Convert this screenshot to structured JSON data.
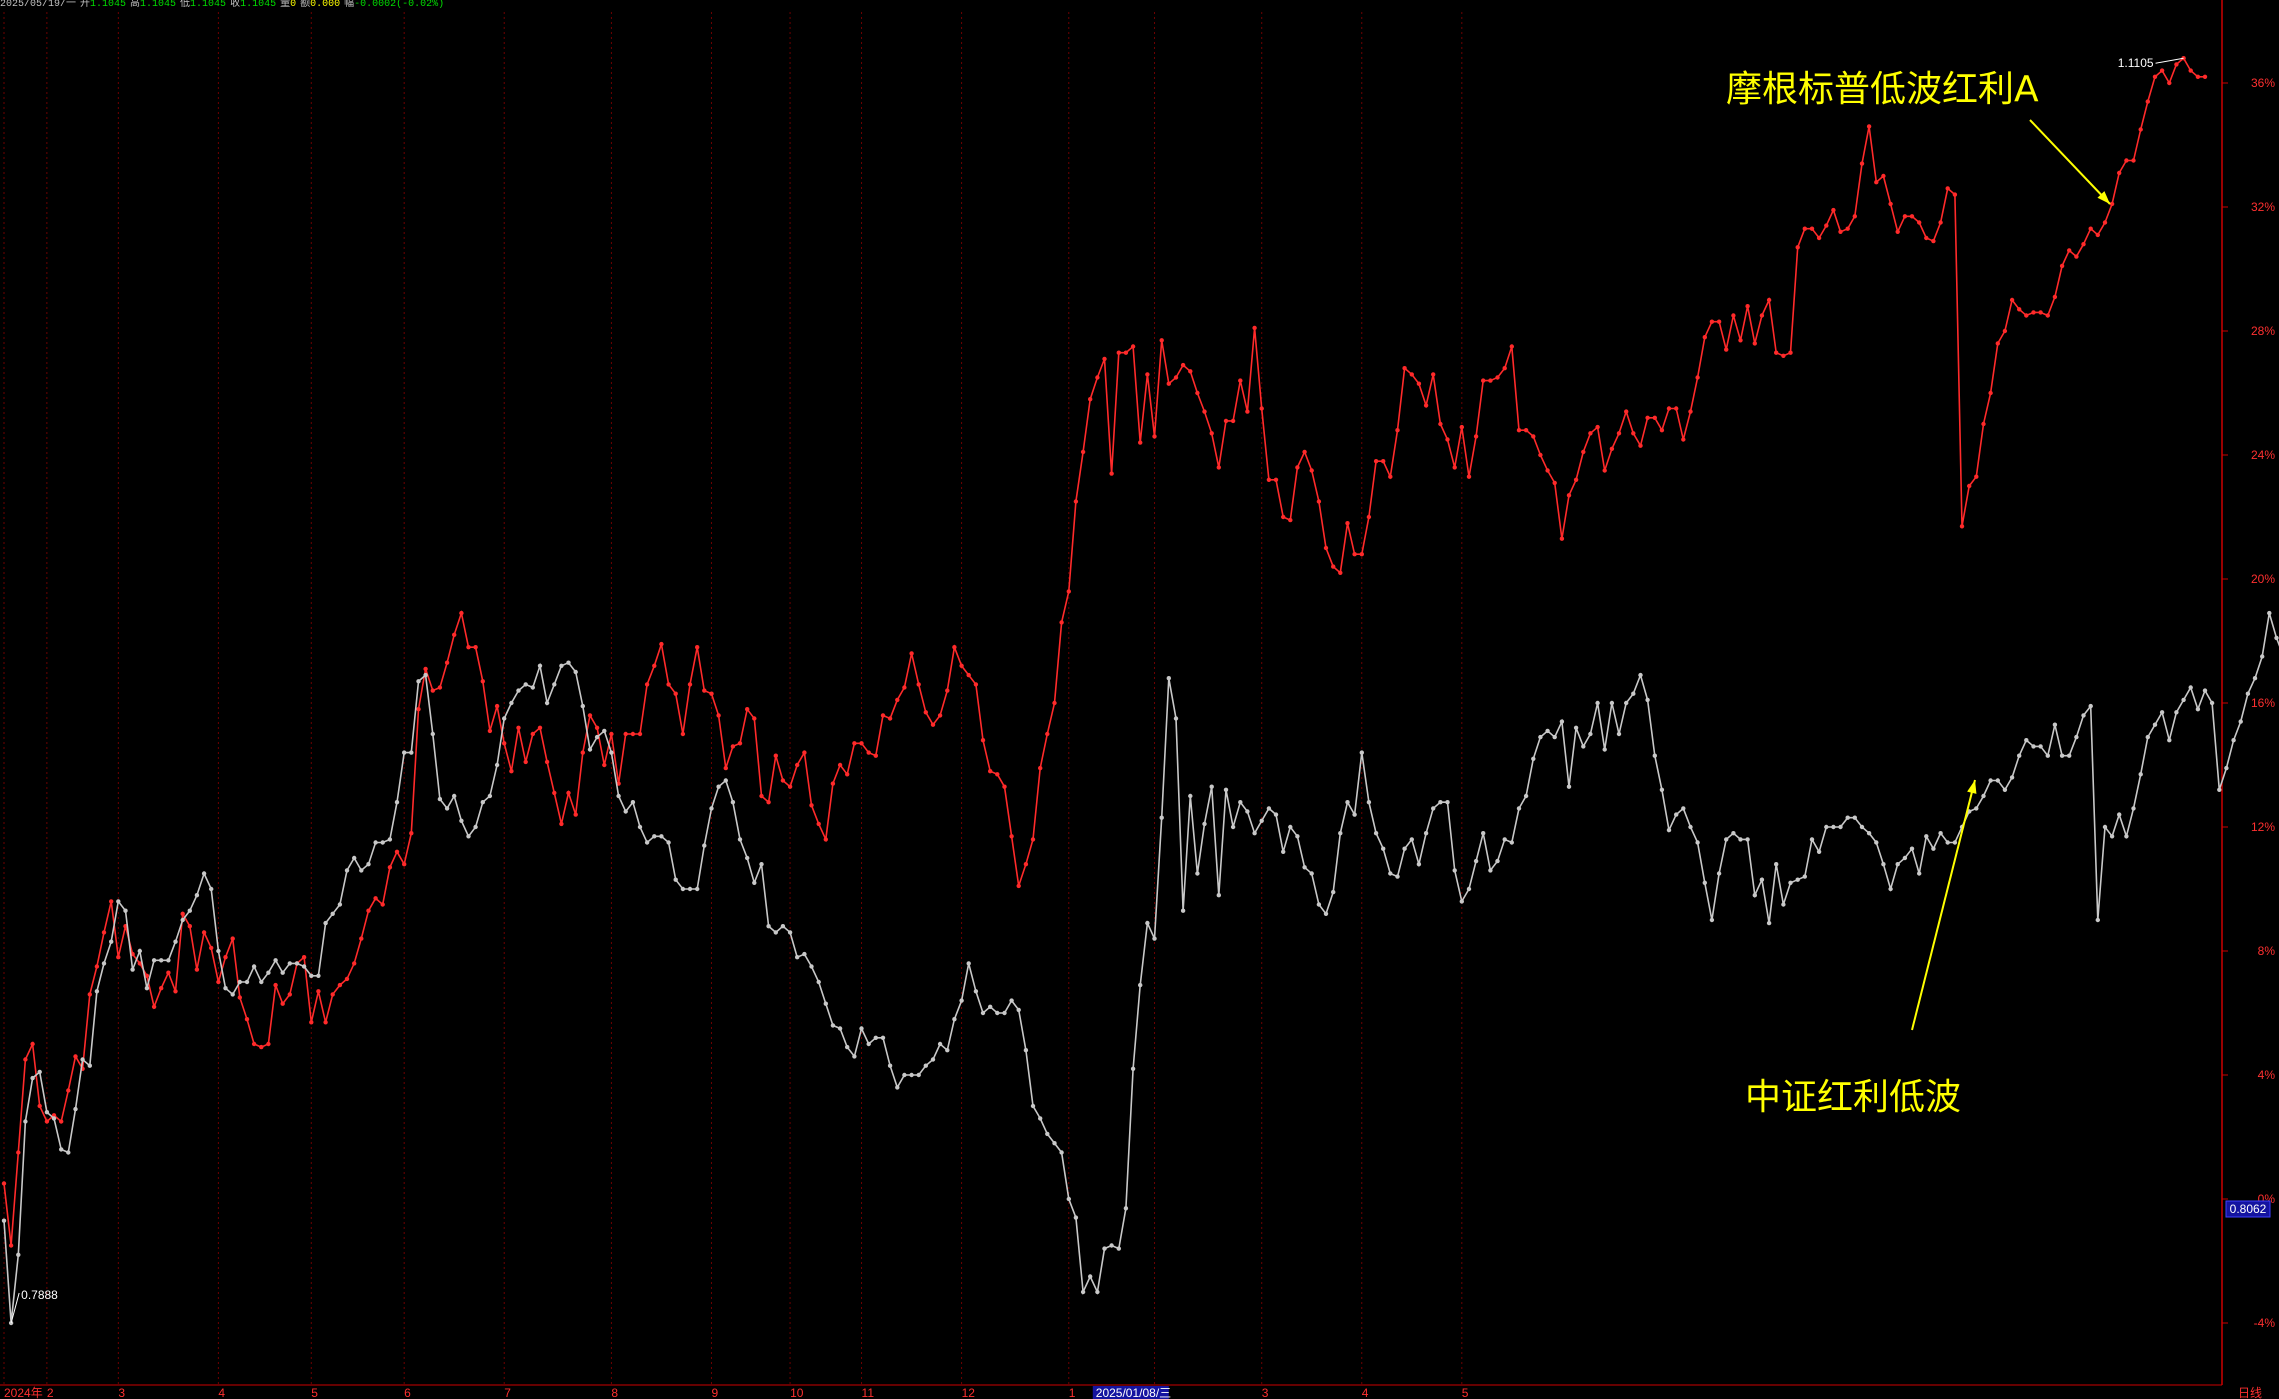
{
  "header": {
    "date": "2025/05/19/一",
    "open_label": "开",
    "open": "1.1045",
    "high_label": "高",
    "high": "1.1045",
    "low_label": "低",
    "low": "1.1045",
    "close_label": "收",
    "close": "1.1045",
    "vol_label": "量",
    "vol": "0",
    "amount_label": "额",
    "amount": "0.000",
    "change_label": "幅",
    "change": "-0.0002(-0.02%)"
  },
  "annotations": {
    "fund": "摩根标普低波红利A",
    "index": "中证红利低波"
  },
  "markers": {
    "high_label": "1.1105",
    "low_label": "0.7888",
    "current_box": "0.8062"
  },
  "bottom": {
    "cursor_date": "2025/01/08/三",
    "period": "日线"
  },
  "colors": {
    "fund": "#ff2a2a",
    "index": "#c8c8c8",
    "grid": "#6e0000",
    "axis": "#cc0000",
    "annotation": "#ffff00"
  },
  "chart_data": {
    "type": "line",
    "title": "",
    "ylabel": "",
    "xlabel": "",
    "y_unit": "%",
    "ylim": [
      -5,
      38
    ],
    "y_ticks": [
      "-4%",
      "0%",
      "4%",
      "8%",
      "12%",
      "16%",
      "20%",
      "24%",
      "28%",
      "32%",
      "36%"
    ],
    "x_ticks": [
      "2024年",
      "2",
      "3",
      "4",
      "5",
      "6",
      "7",
      "8",
      "9",
      "10",
      "11",
      "12",
      "1",
      "2",
      "3",
      "4",
      "5"
    ],
    "x_tick_index": [
      0,
      6,
      16,
      30,
      43,
      56,
      70,
      85,
      99,
      110,
      120,
      134,
      149,
      161,
      176,
      190,
      204
    ],
    "grid": true,
    "series": [
      {
        "name": "摩根标普低波红利A",
        "values": [
          0.5,
          -1.5,
          1.5,
          4.5,
          5.0,
          3.0,
          2.5,
          2.7,
          2.5,
          3.5,
          4.6,
          4.2,
          6.6,
          7.5,
          8.6,
          9.6,
          7.8,
          8.8,
          7.9,
          7.6,
          7.2,
          6.2,
          6.8,
          7.3,
          6.7,
          9.2,
          8.8,
          7.4,
          8.6,
          8.1,
          7.0,
          7.8,
          8.4,
          6.5,
          5.8,
          5.0,
          4.9,
          5.0,
          6.9,
          6.3,
          6.6,
          7.6,
          7.8,
          5.7,
          6.7,
          5.7,
          6.6,
          6.9,
          7.1,
          7.6,
          8.4,
          9.3,
          9.7,
          9.5,
          10.7,
          11.2,
          10.8,
          11.8,
          15.8,
          17.1,
          16.4,
          16.5,
          17.3,
          18.2,
          18.9,
          17.8,
          17.8,
          16.7,
          15.1,
          15.9,
          14.7,
          13.8,
          15.2,
          14.1,
          15.0,
          15.2,
          14.1,
          13.1,
          12.1,
          13.1,
          12.4,
          14.4,
          15.6,
          15.2,
          14.0,
          15.0,
          13.4,
          15.0,
          15.0,
          15.0,
          16.6,
          17.2,
          17.9,
          16.6,
          16.3,
          15.0,
          16.6,
          17.8,
          16.4,
          16.3,
          15.6,
          13.9,
          14.6,
          14.7,
          15.8,
          15.5,
          13.0,
          12.8,
          14.3,
          13.5,
          13.3,
          14.0,
          14.4,
          12.7,
          12.1,
          11.6,
          13.4,
          14.0,
          13.7,
          14.7,
          14.7,
          14.4,
          14.3,
          15.6,
          15.5,
          16.1,
          16.5,
          17.6,
          16.6,
          15.7,
          15.3,
          15.6,
          16.4,
          17.8,
          17.2,
          16.9,
          16.6,
          14.8,
          13.8,
          13.7,
          13.3,
          11.7,
          10.1,
          10.8,
          11.6,
          13.9,
          15.0,
          16.0,
          18.6,
          19.6,
          22.5,
          24.1,
          25.8,
          26.5,
          27.1,
          23.4,
          27.3,
          27.3,
          27.5,
          24.4,
          26.6,
          24.6,
          27.7,
          26.3,
          26.5,
          26.9,
          26.7,
          26.0,
          25.4,
          24.7,
          23.6,
          25.1,
          25.1,
          26.4,
          25.4,
          28.1,
          25.5,
          23.2,
          23.2,
          22.0,
          21.9,
          23.6,
          24.1,
          23.5,
          22.5,
          21.0,
          20.4,
          20.2,
          21.8,
          20.8,
          20.8,
          22.0,
          23.8,
          23.8,
          23.3,
          24.8,
          26.8,
          26.6,
          26.3,
          25.6,
          26.6,
          25.0,
          24.5,
          23.6,
          24.9,
          23.3,
          24.6,
          26.4,
          26.4,
          26.5,
          26.8,
          27.5,
          24.8,
          24.8,
          24.6,
          24.0,
          23.5,
          23.1,
          21.3,
          22.7,
          23.2,
          24.1,
          24.7,
          24.9,
          23.5,
          24.2,
          24.7,
          25.4,
          24.7,
          24.3,
          25.2,
          25.2,
          24.8,
          25.5,
          25.5,
          24.5,
          25.4,
          26.5,
          27.8,
          28.3,
          28.3,
          27.4,
          28.5,
          27.7,
          28.8,
          27.6,
          28.5,
          29.0,
          27.3,
          27.2,
          27.3,
          30.7,
          31.3,
          31.3,
          31.0,
          31.4,
          31.9,
          31.2,
          31.3,
          31.7,
          33.4,
          34.6,
          32.8,
          33.0,
          32.1,
          31.2,
          31.7,
          31.7,
          31.5,
          31.0,
          30.9,
          31.5,
          32.6,
          32.4,
          21.7,
          23.0,
          23.3,
          25.0,
          26.0,
          27.6,
          28.0,
          29.0,
          28.7,
          28.5,
          28.6,
          28.6,
          28.5,
          29.1,
          30.1,
          30.6,
          30.4,
          30.8,
          31.3,
          31.1,
          31.5,
          32.1,
          33.1,
          33.5,
          33.5,
          34.5,
          35.4,
          36.2,
          36.4,
          36.0,
          36.6,
          36.8,
          36.4,
          36.2,
          36.2
        ],
        "last": 36.2
      },
      {
        "name": "中证红利低波",
        "values": [
          -0.7,
          -4.0,
          -1.8,
          2.5,
          3.9,
          4.1,
          2.8,
          2.6,
          1.6,
          1.5,
          2.9,
          4.5,
          4.3,
          6.7,
          7.6,
          8.3,
          9.6,
          9.3,
          7.4,
          8.0,
          6.8,
          7.7,
          7.7,
          7.7,
          8.3,
          9.0,
          9.3,
          9.8,
          10.5,
          10.0,
          8.0,
          6.8,
          6.6,
          7.0,
          7.0,
          7.5,
          7.0,
          7.3,
          7.7,
          7.3,
          7.6,
          7.6,
          7.5,
          7.2,
          7.2,
          8.9,
          9.2,
          9.5,
          10.6,
          11.0,
          10.6,
          10.8,
          11.5,
          11.5,
          11.6,
          12.8,
          14.4,
          14.4,
          16.7,
          16.9,
          15.0,
          12.9,
          12.6,
          13.0,
          12.2,
          11.7,
          12.0,
          12.8,
          13.0,
          14.0,
          15.5,
          16.0,
          16.4,
          16.6,
          16.5,
          17.2,
          16.0,
          16.6,
          17.2,
          17.3,
          17.0,
          15.9,
          14.5,
          14.9,
          15.1,
          14.4,
          13.0,
          12.5,
          12.8,
          12.0,
          11.5,
          11.7,
          11.7,
          11.5,
          10.3,
          10.0,
          10.0,
          10.0,
          11.4,
          12.6,
          13.3,
          13.5,
          12.8,
          11.6,
          11.0,
          10.2,
          10.8,
          8.8,
          8.6,
          8.8,
          8.6,
          7.8,
          7.9,
          7.5,
          7.0,
          6.3,
          5.6,
          5.5,
          4.9,
          4.6,
          5.5,
          5.0,
          5.2,
          5.2,
          4.3,
          3.6,
          4.0,
          4.0,
          4.0,
          4.3,
          4.5,
          5.0,
          4.8,
          5.8,
          6.4,
          7.6,
          6.7,
          6.0,
          6.2,
          6.0,
          6.0,
          6.4,
          6.1,
          4.8,
          3.0,
          2.6,
          2.1,
          1.8,
          1.5,
          0.0,
          -0.6,
          -3.0,
          -2.5,
          -3.0,
          -1.6,
          -1.5,
          -1.6,
          -0.3,
          4.2,
          6.9,
          8.9,
          8.4,
          12.3,
          16.8,
          15.5,
          9.3,
          13.0,
          10.5,
          12.1,
          13.3,
          9.8,
          13.2,
          12.0,
          12.8,
          12.5,
          11.8,
          12.2,
          12.6,
          12.4,
          11.2,
          12.0,
          11.7,
          10.7,
          10.5,
          9.5,
          9.2,
          9.9,
          11.8,
          12.8,
          12.4,
          14.4,
          12.8,
          11.8,
          11.3,
          10.5,
          10.4,
          11.3,
          11.6,
          10.8,
          11.8,
          12.6,
          12.8,
          12.8,
          10.6,
          9.6,
          10.0,
          10.9,
          11.8,
          10.6,
          10.9,
          11.6,
          11.5,
          12.6,
          13.0,
          14.2,
          14.9,
          15.1,
          14.9,
          15.4,
          13.3,
          15.2,
          14.6,
          15.0,
          16.0,
          14.5,
          16.0,
          15.0,
          16.0,
          16.3,
          16.9,
          16.1,
          14.3,
          13.2,
          11.9,
          12.4,
          12.6,
          12.0,
          11.5,
          10.2,
          9.0,
          10.5,
          11.6,
          11.8,
          11.6,
          11.6,
          9.8,
          10.3,
          8.9,
          10.8,
          9.5,
          10.2,
          10.3,
          10.4,
          11.6,
          11.2,
          12.0,
          12.0,
          12.0,
          12.3,
          12.3,
          12.0,
          11.8,
          11.5,
          10.8,
          10.0,
          10.8,
          11.0,
          11.3,
          10.5,
          11.7,
          11.3,
          11.8,
          11.5,
          11.5,
          12.0,
          12.5,
          12.6,
          13.0,
          13.5,
          13.5,
          13.2,
          13.6,
          14.3,
          14.8,
          14.6,
          14.6,
          14.3,
          15.3,
          14.3,
          14.3,
          14.9,
          15.6,
          15.9,
          9.0,
          12.0,
          11.7,
          12.4,
          11.7,
          12.6,
          13.7,
          14.9,
          15.3,
          15.7,
          14.8,
          15.7,
          16.1,
          16.5,
          15.8,
          16.4,
          16.0,
          13.2,
          13.9,
          14.8,
          15.4,
          16.3,
          16.8,
          17.5,
          18.9,
          18.1,
          17.5,
          17.6
        ]
      }
    ]
  }
}
